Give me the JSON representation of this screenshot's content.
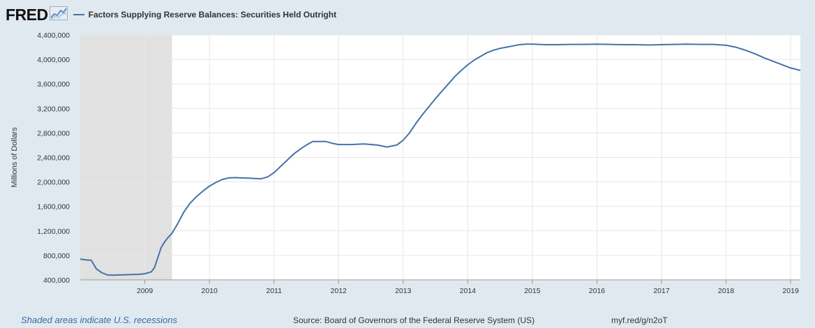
{
  "header": {
    "logo_text": "FRED",
    "logo_icon": "chart-line-icon"
  },
  "footer": {
    "recession_note": "Shaded areas indicate U.S. recessions",
    "source": "Source: Board of Governors of the Federal Reserve System (US)",
    "short_url": "myf.red/g/n2oT"
  },
  "colors": {
    "series": "#4572a7",
    "recession": "#e1e1e1",
    "background": "#e1e9f0",
    "plot": "#ffffff"
  },
  "chart_data": {
    "type": "line",
    "title": "",
    "ylabel": "Millions of Dollars",
    "xlabel": "",
    "ylim": [
      400000,
      4400000
    ],
    "yticks": [
      400000,
      800000,
      1200000,
      1600000,
      2000000,
      2400000,
      2800000,
      3200000,
      3600000,
      4000000,
      4400000
    ],
    "ytick_labels": [
      "400,000",
      "800,000",
      "1,200,000",
      "1,600,000",
      "2,000,000",
      "2,400,000",
      "2,800,000",
      "3,200,000",
      "3,600,000",
      "4,000,000",
      "4,400,000"
    ],
    "xlim": [
      2008.0,
      2019.15
    ],
    "xticks": [
      2009,
      2010,
      2011,
      2012,
      2013,
      2014,
      2015,
      2016,
      2017,
      2018,
      2019
    ],
    "xtick_labels": [
      "2009",
      "2010",
      "2011",
      "2012",
      "2013",
      "2014",
      "2015",
      "2016",
      "2017",
      "2018",
      "2019"
    ],
    "grid": true,
    "recessions": [
      {
        "start": 2008.0,
        "end": 2009.42
      }
    ],
    "series": [
      {
        "name": "Factors Supplying Reserve Balances: Securities Held Outright",
        "x": [
          2008.0,
          2008.1,
          2008.17,
          2008.25,
          2008.33,
          2008.42,
          2008.5,
          2008.6,
          2008.75,
          2008.9,
          2009.0,
          2009.1,
          2009.15,
          2009.2,
          2009.25,
          2009.3,
          2009.35,
          2009.42,
          2009.5,
          2009.6,
          2009.7,
          2009.8,
          2009.9,
          2010.0,
          2010.1,
          2010.2,
          2010.3,
          2010.4,
          2010.5,
          2010.6,
          2010.7,
          2010.8,
          2010.9,
          2011.0,
          2011.1,
          2011.2,
          2011.3,
          2011.4,
          2011.5,
          2011.6,
          2011.8,
          2011.9,
          2012.0,
          2012.2,
          2012.4,
          2012.6,
          2012.75,
          2012.9,
          2013.0,
          2013.1,
          2013.2,
          2013.3,
          2013.4,
          2013.5,
          2013.6,
          2013.7,
          2013.8,
          2013.9,
          2014.0,
          2014.1,
          2014.2,
          2014.3,
          2014.4,
          2014.5,
          2014.6,
          2014.7,
          2014.8,
          2014.9,
          2015.0,
          2015.2,
          2015.4,
          2015.6,
          2015.8,
          2016.0,
          2016.2,
          2016.4,
          2016.6,
          2016.8,
          2017.0,
          2017.2,
          2017.4,
          2017.6,
          2017.8,
          2018.0,
          2018.15,
          2018.3,
          2018.45,
          2018.6,
          2018.75,
          2018.9,
          2019.0,
          2019.15
        ],
        "values": [
          740000,
          725000,
          720000,
          580000,
          520000,
          480000,
          478000,
          480000,
          485000,
          490000,
          500000,
          530000,
          600000,
          760000,
          920000,
          1010000,
          1080000,
          1160000,
          1300000,
          1500000,
          1650000,
          1760000,
          1850000,
          1930000,
          1990000,
          2040000,
          2065000,
          2070000,
          2065000,
          2060000,
          2055000,
          2050000,
          2080000,
          2150000,
          2250000,
          2350000,
          2450000,
          2530000,
          2600000,
          2660000,
          2660000,
          2630000,
          2610000,
          2610000,
          2620000,
          2600000,
          2570000,
          2600000,
          2680000,
          2800000,
          2960000,
          3100000,
          3230000,
          3360000,
          3480000,
          3600000,
          3720000,
          3820000,
          3910000,
          3990000,
          4050000,
          4110000,
          4150000,
          4180000,
          4200000,
          4220000,
          4240000,
          4250000,
          4250000,
          4240000,
          4240000,
          4245000,
          4245000,
          4250000,
          4245000,
          4240000,
          4240000,
          4235000,
          4240000,
          4245000,
          4250000,
          4245000,
          4245000,
          4230000,
          4200000,
          4150000,
          4090000,
          4020000,
          3960000,
          3900000,
          3860000,
          3820000
        ]
      }
    ]
  }
}
